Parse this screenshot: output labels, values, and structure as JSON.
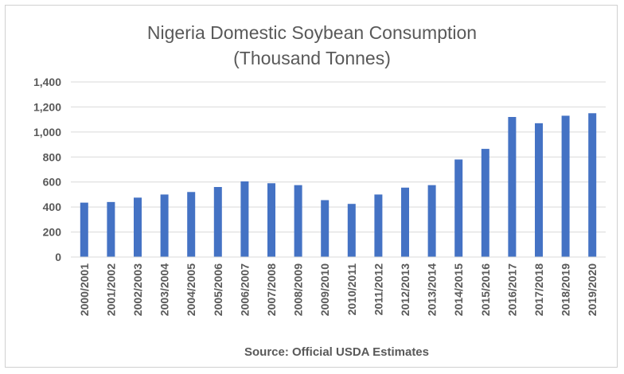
{
  "chart_data": {
    "type": "bar",
    "title": "Nigeria Domestic Soybean Consumption",
    "subtitle": "(Thousand Tonnes)",
    "xlabel": "Source: Official USDA Estimates",
    "ylabel": "",
    "ylim": [
      0,
      1400
    ],
    "yticks": [
      0,
      200,
      400,
      600,
      800,
      1000,
      1200,
      1400
    ],
    "ytick_labels": [
      "0",
      "200",
      "400",
      "600",
      "800",
      "1,000",
      "1,200",
      "1,400"
    ],
    "grid": true,
    "bar_color": "#4472c4",
    "categories": [
      "2000/2001",
      "2001/2002",
      "2002/2003",
      "2003/2004",
      "2004/2005",
      "2005/2006",
      "2006/2007",
      "2007/2008",
      "2008/2009",
      "2009/2010",
      "2010/2011",
      "2011/2012",
      "2012/2013",
      "2013/2014",
      "2014/2015",
      "2015/2016",
      "2016/2017",
      "2017/2018",
      "2018/2019",
      "2019/2020"
    ],
    "values": [
      435,
      440,
      475,
      500,
      520,
      560,
      605,
      590,
      575,
      455,
      425,
      500,
      555,
      575,
      780,
      865,
      1120,
      1070,
      1130,
      1150
    ]
  }
}
